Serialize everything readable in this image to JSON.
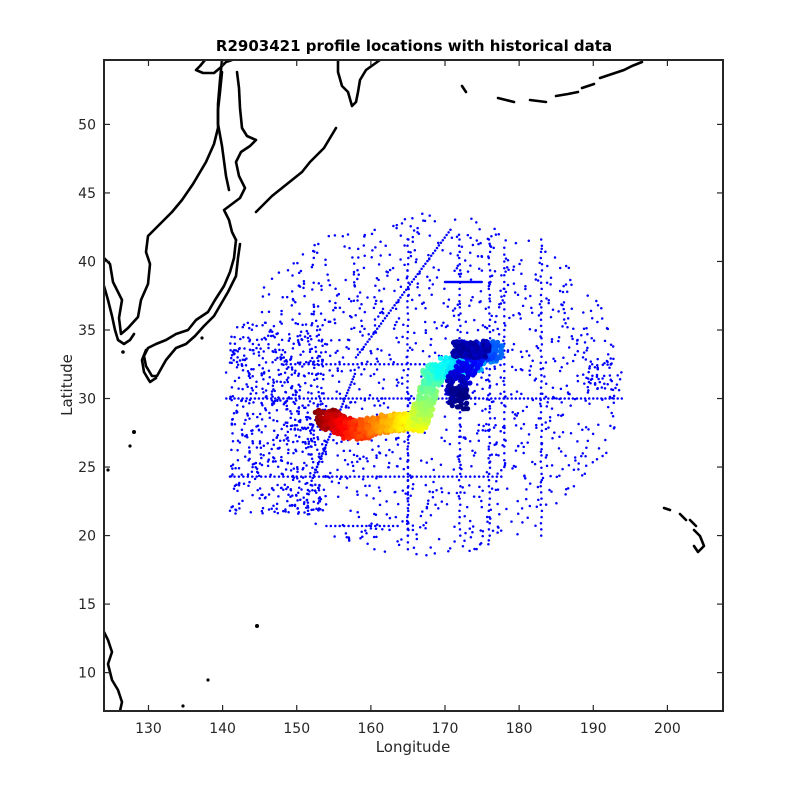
{
  "chart_data": {
    "type": "scatter",
    "title": "R2903421 profile locations with historical data",
    "xlabel": "Longitude",
    "ylabel": "Latitude",
    "xlim": [
      124,
      207.5
    ],
    "ylim": [
      7.2,
      54.7
    ],
    "xticks": [
      130,
      140,
      150,
      160,
      170,
      180,
      190,
      200
    ],
    "yticks": [
      10,
      15,
      20,
      25,
      30,
      35,
      40,
      45,
      50
    ],
    "grid": false,
    "colors": {
      "historical": "#0000ff",
      "coastline": "#000000",
      "axes": "#262626"
    },
    "float_colormap": "jet",
    "historical_region": {
      "lon_range": [
        140.5,
        195
      ],
      "lat_range": [
        19,
        43.5
      ],
      "transect_lat": [
        30,
        24.3,
        20.7
      ],
      "transect_lon": [
        165,
        172,
        176,
        183
      ]
    },
    "float_track": [
      {
        "lon": 153.5,
        "lat": 28.6
      },
      {
        "lon": 155.5,
        "lat": 28.2
      },
      {
        "lon": 158.0,
        "lat": 27.6
      },
      {
        "lon": 160.5,
        "lat": 28.0
      },
      {
        "lon": 163.0,
        "lat": 28.3
      },
      {
        "lon": 166.0,
        "lat": 28.2
      },
      {
        "lon": 167.5,
        "lat": 29.5
      },
      {
        "lon": 168.0,
        "lat": 31.5
      },
      {
        "lon": 170.0,
        "lat": 32.3
      },
      {
        "lon": 173.5,
        "lat": 32.6
      },
      {
        "lon": 176.5,
        "lat": 33.6
      },
      {
        "lon": 174.0,
        "lat": 33.3
      },
      {
        "lon": 171.5,
        "lat": 31.0
      },
      {
        "lon": 172.0,
        "lat": 29.8
      }
    ]
  }
}
